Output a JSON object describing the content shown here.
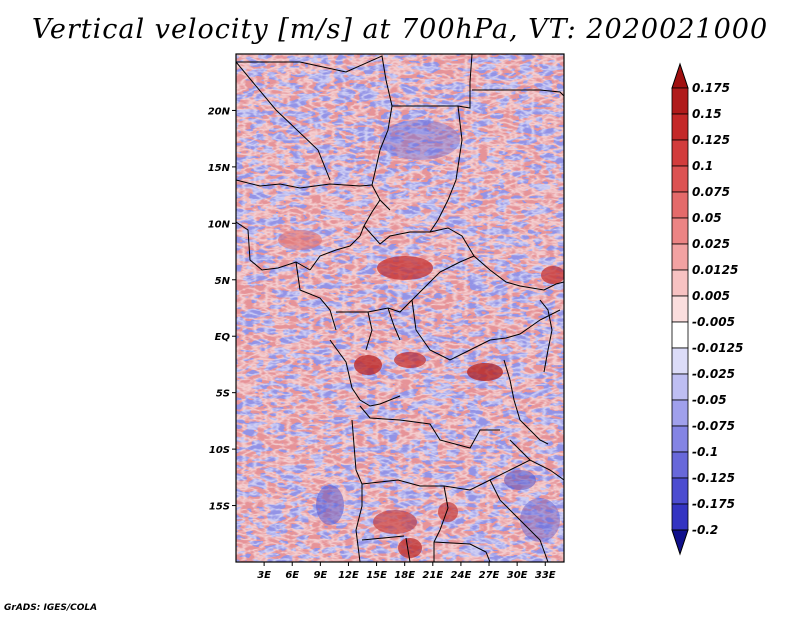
{
  "title": "Vertical velocity [m/s] at 700hPa, VT: 2020021000",
  "credit": "GrADS: IGES/COLA",
  "map": {
    "variable": "Vertical velocity",
    "units": "m/s",
    "level": "700hPa",
    "valid_time": "2020021000",
    "lon_range": [
      0,
      35
    ],
    "lat_range": [
      -20,
      25
    ],
    "lon_ticks": [
      {
        "value": 3,
        "label": "3E"
      },
      {
        "value": 6,
        "label": "6E"
      },
      {
        "value": 9,
        "label": "9E"
      },
      {
        "value": 12,
        "label": "12E"
      },
      {
        "value": 15,
        "label": "15E"
      },
      {
        "value": 18,
        "label": "18E"
      },
      {
        "value": 21,
        "label": "21E"
      },
      {
        "value": 24,
        "label": "24E"
      },
      {
        "value": 27,
        "label": "27E"
      },
      {
        "value": 30,
        "label": "30E"
      },
      {
        "value": 33,
        "label": "33E"
      }
    ],
    "lat_ticks": [
      {
        "value": 20,
        "label": "20N"
      },
      {
        "value": 15,
        "label": "15N"
      },
      {
        "value": 10,
        "label": "10N"
      },
      {
        "value": 5,
        "label": "5N"
      },
      {
        "value": 0,
        "label": "EQ"
      },
      {
        "value": -5,
        "label": "5S"
      },
      {
        "value": -10,
        "label": "10S"
      },
      {
        "value": -15,
        "label": "15S"
      }
    ]
  },
  "colorbar": {
    "levels": [
      {
        "label": "0.175",
        "color": "#b01b1b"
      },
      {
        "label": "0.15",
        "color": "#c42828"
      },
      {
        "label": "0.125",
        "color": "#d23c3c"
      },
      {
        "label": "0.1",
        "color": "#dc5252"
      },
      {
        "label": "0.075",
        "color": "#e46a6a"
      },
      {
        "label": "0.05",
        "color": "#ec8484"
      },
      {
        "label": "0.025",
        "color": "#f2a2a2"
      },
      {
        "label": "0.0125",
        "color": "#f7c2c2"
      },
      {
        "label": "0.005",
        "color": "#fbdede"
      },
      {
        "label": "-0.005",
        "color": "#ffffff"
      },
      {
        "label": "-0.0125",
        "color": "#dcdcf8"
      },
      {
        "label": "-0.025",
        "color": "#bebef2"
      },
      {
        "label": "-0.05",
        "color": "#a0a0ec"
      },
      {
        "label": "-0.075",
        "color": "#8484e4"
      },
      {
        "label": "-0.1",
        "color": "#6868da"
      },
      {
        "label": "-0.125",
        "color": "#4c4cd0"
      },
      {
        "label": "-0.175",
        "color": "#3434c2"
      },
      {
        "label": "-0.2",
        "color": "#2020aa"
      }
    ],
    "top_arrow_color": "#a01010",
    "bottom_arrow_color": "#10108c"
  }
}
